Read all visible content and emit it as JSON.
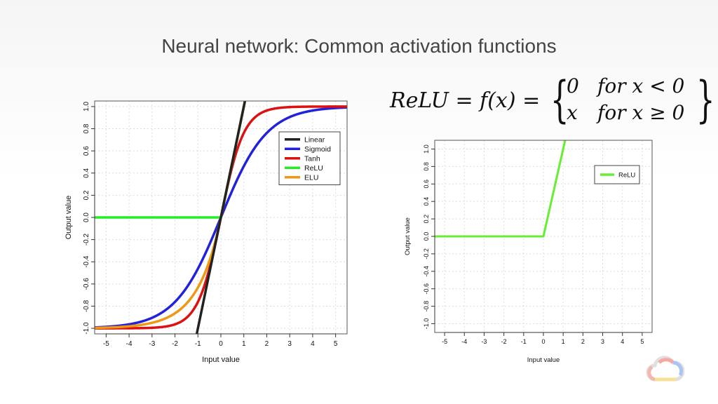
{
  "slide": {
    "title": "Neural network: Common activation functions"
  },
  "formula": {
    "lhs": "ReLU = f(x) =",
    "case_1_value": "0",
    "case_1_condition": "for x < 0",
    "case_2_value": "x",
    "case_2_condition": "for x ≥ 0"
  },
  "chart_data": [
    {
      "type": "line",
      "xlabel": "Input value",
      "ylabel": "Output value",
      "xlim": [
        -5.5,
        5.5
      ],
      "ylim": [
        -1.05,
        1.05
      ],
      "x_ticks": [
        -5,
        -4,
        -3,
        -2,
        -1,
        0,
        1,
        2,
        3,
        4,
        5
      ],
      "y_ticks": [
        -1.0,
        -0.8,
        -0.6,
        -0.4,
        -0.2,
        0.0,
        0.2,
        0.4,
        0.6,
        0.8,
        1.0
      ],
      "grid": true,
      "legend_position": "top-right",
      "series": [
        {
          "name": "Linear",
          "function": "f(x) = x",
          "color": "#222222"
        },
        {
          "name": "Sigmoid",
          "function": "f(x) = 2/(1+e^-x) - 1",
          "color": "#2222dd"
        },
        {
          "name": "Tanh",
          "function": "f(x) = tanh(x)",
          "color": "#dd1111"
        },
        {
          "name": "ReLU",
          "function": "f(x) = max(0, x)",
          "color": "#22ee22"
        },
        {
          "name": "ELU",
          "function": "f(x) = x if x >= 0 else e^x - 1",
          "color": "#ee9911"
        }
      ]
    },
    {
      "type": "line",
      "xlabel": "Input value",
      "ylabel": "Output value",
      "xlim": [
        -5.5,
        5.5
      ],
      "ylim": [
        -1.1,
        1.1
      ],
      "x_ticks": [
        -5,
        -4,
        -3,
        -2,
        -1,
        0,
        1,
        2,
        3,
        4,
        5
      ],
      "y_ticks": [
        -1.0,
        -0.8,
        -0.6,
        -0.4,
        -0.2,
        0.0,
        0.2,
        0.4,
        0.6,
        0.8,
        1.0
      ],
      "grid": true,
      "legend_position": "top-right",
      "series": [
        {
          "name": "ReLU",
          "function": "f(x) = max(0, x)",
          "color": "#66ee33"
        }
      ]
    }
  ],
  "logo": {
    "icon": "google-cloud-icon"
  }
}
